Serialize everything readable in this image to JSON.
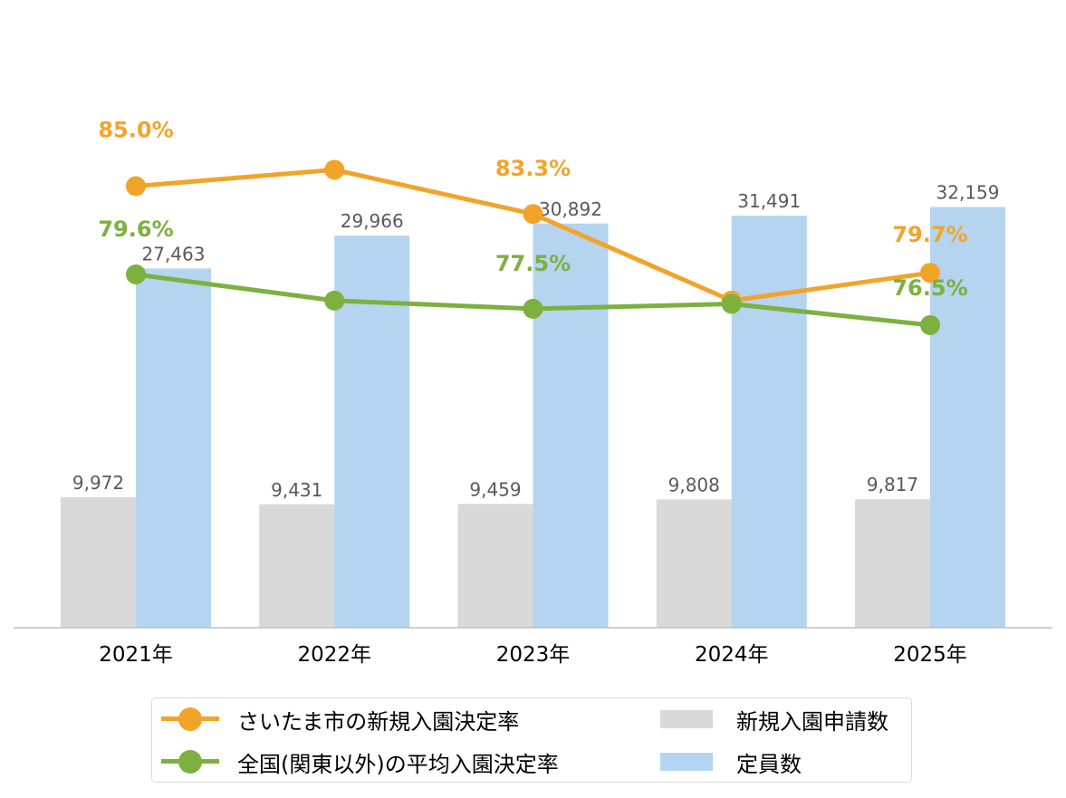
{
  "chart_data": {
    "type": "bar+line",
    "categories": [
      "2021年",
      "2022年",
      "2023年",
      "2024年",
      "2025年"
    ],
    "bars": [
      {
        "name": "新規入園申請数",
        "color": "#d9d9d9",
        "values": [
          9972,
          9431,
          9459,
          9808,
          9817
        ],
        "labels": [
          "9,972",
          "9,431",
          "9,459",
          "9,808",
          "9,817"
        ]
      },
      {
        "name": "定員数",
        "color": "#b4d4ef",
        "values": [
          27463,
          29966,
          30892,
          31491,
          32159
        ],
        "labels": [
          "27,463",
          "29,966",
          "30,892",
          "31,491",
          "32,159"
        ]
      }
    ],
    "lines": [
      {
        "name": "さいたま市の新規入園決定率",
        "color": "#f2a42a",
        "values": [
          0.85,
          0.86,
          0.833,
          0.78,
          0.797
        ],
        "point_labels": [
          "85.0%",
          "",
          "83.3%",
          "",
          "79.7%"
        ]
      },
      {
        "name": "全国(関東以外)の平均入園決定率",
        "color": "#7cb13f",
        "values": [
          0.796,
          0.78,
          0.775,
          0.778,
          0.765
        ],
        "point_labels": [
          "79.6%",
          "",
          "77.5%",
          "",
          "76.5%"
        ]
      }
    ],
    "bar_axis": {
      "min": 0,
      "max": 45000
    },
    "line_axis": {
      "min": 0.58,
      "max": 0.94
    },
    "grid": false,
    "legend_position": "bottom"
  },
  "colors": {
    "axis": "#c0c0c0",
    "bar_label": "#595959",
    "tick_label": "#000000"
  }
}
